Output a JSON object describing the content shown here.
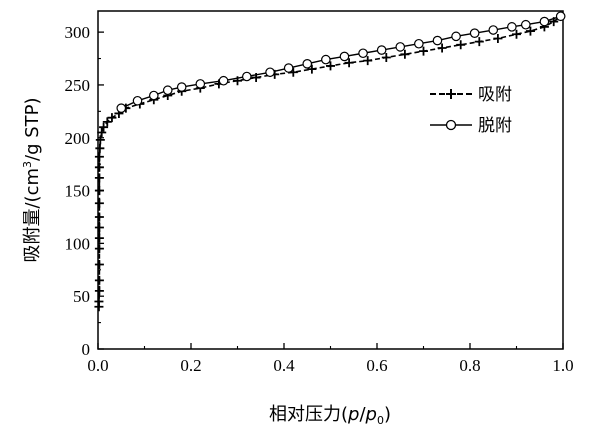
{
  "chart_data": {
    "type": "line",
    "xlabel": "相对压力(p/p0)",
    "xlabel_main": "相对压力(",
    "xlabel_p": "p",
    "xlabel_slash": "/",
    "xlabel_p0": "p",
    "xlabel_sub": "0",
    "xlabel_close": ")",
    "ylabel": "吸附量/(cm³/g STP)",
    "ylabel_a": "吸附量/(cm",
    "ylabel_sup": "3",
    "ylabel_b": "/g STP)",
    "xlim": [
      0.0,
      1.0
    ],
    "ylim": [
      0,
      320
    ],
    "x_ticks": [
      "0.0",
      "0.2",
      "0.4",
      "0.6",
      "0.8",
      "1.0"
    ],
    "y_ticks": [
      "0",
      "50",
      "100",
      "150",
      "200",
      "250",
      "300"
    ],
    "grid": false,
    "legend_position": "top-right",
    "series": [
      {
        "name": "吸附",
        "marker": "plus",
        "line_style": "dashed",
        "points": [
          [
            0.002,
            40
          ],
          [
            0.002,
            45
          ],
          [
            0.003,
            55
          ],
          [
            0.003,
            65
          ],
          [
            0.003,
            80
          ],
          [
            0.003,
            95
          ],
          [
            0.003,
            105
          ],
          [
            0.003,
            115
          ],
          [
            0.003,
            125
          ],
          [
            0.003,
            138
          ],
          [
            0.003,
            150
          ],
          [
            0.003,
            162
          ],
          [
            0.003,
            172
          ],
          [
            0.003,
            182
          ],
          [
            0.004,
            190
          ],
          [
            0.005,
            198
          ],
          [
            0.008,
            205
          ],
          [
            0.012,
            210
          ],
          [
            0.02,
            215
          ],
          [
            0.03,
            219
          ],
          [
            0.045,
            223
          ],
          [
            0.06,
            228
          ],
          [
            0.09,
            232
          ],
          [
            0.12,
            236
          ],
          [
            0.15,
            240
          ],
          [
            0.18,
            244
          ],
          [
            0.22,
            247
          ],
          [
            0.26,
            251
          ],
          [
            0.3,
            254
          ],
          [
            0.34,
            257
          ],
          [
            0.38,
            260
          ],
          [
            0.42,
            262
          ],
          [
            0.46,
            265
          ],
          [
            0.5,
            268
          ],
          [
            0.54,
            271
          ],
          [
            0.58,
            273
          ],
          [
            0.62,
            276
          ],
          [
            0.66,
            279
          ],
          [
            0.7,
            282
          ],
          [
            0.74,
            285
          ],
          [
            0.78,
            288
          ],
          [
            0.82,
            291
          ],
          [
            0.86,
            294
          ],
          [
            0.9,
            298
          ],
          [
            0.93,
            301
          ],
          [
            0.96,
            305
          ],
          [
            0.98,
            310
          ],
          [
            0.995,
            315
          ]
        ]
      },
      {
        "name": "脱附",
        "marker": "circle",
        "line_style": "solid",
        "points": [
          [
            0.995,
            315
          ],
          [
            0.96,
            310
          ],
          [
            0.92,
            307
          ],
          [
            0.89,
            305
          ],
          [
            0.85,
            302
          ],
          [
            0.81,
            299
          ],
          [
            0.77,
            296
          ],
          [
            0.73,
            292
          ],
          [
            0.69,
            289
          ],
          [
            0.65,
            286
          ],
          [
            0.61,
            283
          ],
          [
            0.57,
            280
          ],
          [
            0.53,
            277
          ],
          [
            0.49,
            274
          ],
          [
            0.45,
            270
          ],
          [
            0.41,
            266
          ],
          [
            0.37,
            262
          ],
          [
            0.32,
            258
          ],
          [
            0.27,
            254
          ],
          [
            0.22,
            251
          ],
          [
            0.18,
            248
          ],
          [
            0.15,
            245
          ],
          [
            0.12,
            240
          ],
          [
            0.085,
            235
          ],
          [
            0.05,
            228
          ]
        ]
      }
    ]
  }
}
